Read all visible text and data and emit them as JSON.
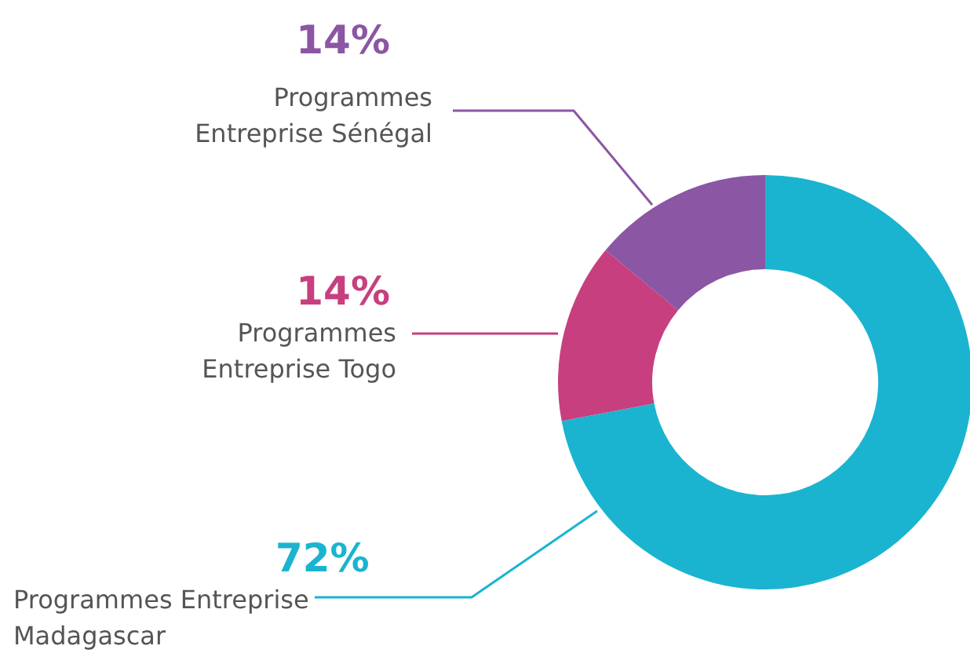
{
  "chart_data": {
    "type": "donut",
    "categories": [
      "Programmes Entreprise\nMadagascar",
      "Programmes\nEntreprise Togo",
      "Programmes\nEntreprise Sénégal"
    ],
    "values": [
      72,
      14,
      14
    ],
    "value_labels": [
      "72%",
      "14%",
      "14%"
    ],
    "colors": [
      "#1ab4d0",
      "#c73f7f",
      "#8b56a3"
    ]
  }
}
